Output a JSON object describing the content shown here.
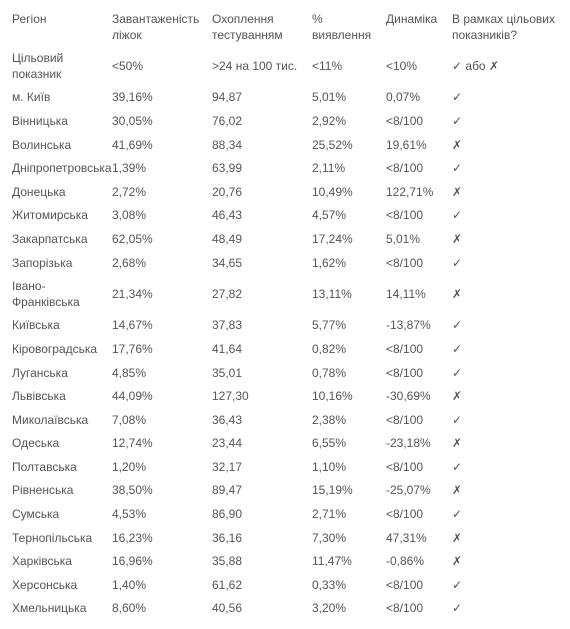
{
  "table": {
    "columns": [
      {
        "key": "region",
        "label": "Регіон"
      },
      {
        "key": "beds",
        "label": "Завантаженість ліжок"
      },
      {
        "key": "testing",
        "label": "Охоплення тестуванням"
      },
      {
        "key": "detect",
        "label": "% виявлення"
      },
      {
        "key": "dynamic",
        "label": "Динаміка"
      },
      {
        "key": "target",
        "label": "В рамках цільових показників?"
      }
    ],
    "target_row": {
      "region": "Цільовий показник",
      "beds": "<50%",
      "testing": ">24 на 100 тис.",
      "detect": "<11%",
      "dynamic": "<10%",
      "target": "✓ або ✗"
    },
    "rows": [
      {
        "region": "м. Київ",
        "beds": "39,16%",
        "testing": "94,87",
        "detect": "5,01%",
        "dynamic": "0,07%",
        "target_pass": true
      },
      {
        "region": "Вінницька",
        "beds": "30,05%",
        "testing": "76,02",
        "detect": "2,92%",
        "dynamic": "<8/100",
        "target_pass": true
      },
      {
        "region": "Волинська",
        "beds": "41,69%",
        "testing": "88,34",
        "detect": "25,52%",
        "dynamic": "19,61%",
        "target_pass": false
      },
      {
        "region": "Дніпропетровська",
        "beds": "1,39%",
        "testing": "63,99",
        "detect": "2,11%",
        "dynamic": "<8/100",
        "target_pass": true
      },
      {
        "region": "Донецька",
        "beds": "2,72%",
        "testing": "20,76",
        "detect": "10,49%",
        "dynamic": "122,71%",
        "target_pass": false
      },
      {
        "region": "Житомирська",
        "beds": "3,08%",
        "testing": "46,43",
        "detect": "4,57%",
        "dynamic": "<8/100",
        "target_pass": true
      },
      {
        "region": "Закарпатська",
        "beds": "62,05%",
        "testing": "48,49",
        "detect": "17,24%",
        "dynamic": "5,01%",
        "target_pass": false
      },
      {
        "region": "Запорізька",
        "beds": "2,68%",
        "testing": "34,65",
        "detect": "1,62%",
        "dynamic": "<8/100",
        "target_pass": true
      },
      {
        "region": "Івано-Франківська",
        "beds": "21,34%",
        "testing": "27,82",
        "detect": "13,11%",
        "dynamic": "14,11%",
        "target_pass": false
      },
      {
        "region": "Київська",
        "beds": "14,67%",
        "testing": "37,83",
        "detect": "5,77%",
        "dynamic": "-13,87%",
        "target_pass": true
      },
      {
        "region": "Кіровоградська",
        "beds": "17,76%",
        "testing": "41,64",
        "detect": "0,82%",
        "dynamic": "<8/100",
        "target_pass": true
      },
      {
        "region": "Луганська",
        "beds": "4,85%",
        "testing": "35,01",
        "detect": "0,78%",
        "dynamic": "<8/100",
        "target_pass": true
      },
      {
        "region": "Львівська",
        "beds": "44,09%",
        "testing": "127,30",
        "detect": "10,16%",
        "dynamic": "-30,69%",
        "target_pass": false
      },
      {
        "region": "Миколаївська",
        "beds": "7,08%",
        "testing": "36,43",
        "detect": "2,38%",
        "dynamic": "<8/100",
        "target_pass": true
      },
      {
        "region": "Одеська",
        "beds": "12,74%",
        "testing": "23,44",
        "detect": "6,55%",
        "dynamic": "-23,18%",
        "target_pass": false
      },
      {
        "region": "Полтавська",
        "beds": "1,20%",
        "testing": "32,17",
        "detect": "1,10%",
        "dynamic": "<8/100",
        "target_pass": true
      },
      {
        "region": "Рівненська",
        "beds": "38,50%",
        "testing": "89,47",
        "detect": "15,19%",
        "dynamic": "-25,07%",
        "target_pass": false
      },
      {
        "region": "Сумська",
        "beds": "4,53%",
        "testing": "86,90",
        "detect": "2,71%",
        "dynamic": "<8/100",
        "target_pass": true
      },
      {
        "region": "Тернопільська",
        "beds": "16,23%",
        "testing": "36,16",
        "detect": "7,30%",
        "dynamic": "47,31%",
        "target_pass": false
      },
      {
        "region": "Харківська",
        "beds": "16,96%",
        "testing": "35,88",
        "detect": "11,47%",
        "dynamic": "-0,86%",
        "target_pass": false
      },
      {
        "region": "Херсонська",
        "beds": "1,40%",
        "testing": "61,62",
        "detect": "0,33%",
        "dynamic": "<8/100",
        "target_pass": true
      },
      {
        "region": "Хмельницька",
        "beds": "8,60%",
        "testing": "40,56",
        "detect": "3,20%",
        "dynamic": "<8/100",
        "target_pass": true
      }
    ],
    "marks": {
      "pass": "✓",
      "fail": "✗"
    }
  }
}
